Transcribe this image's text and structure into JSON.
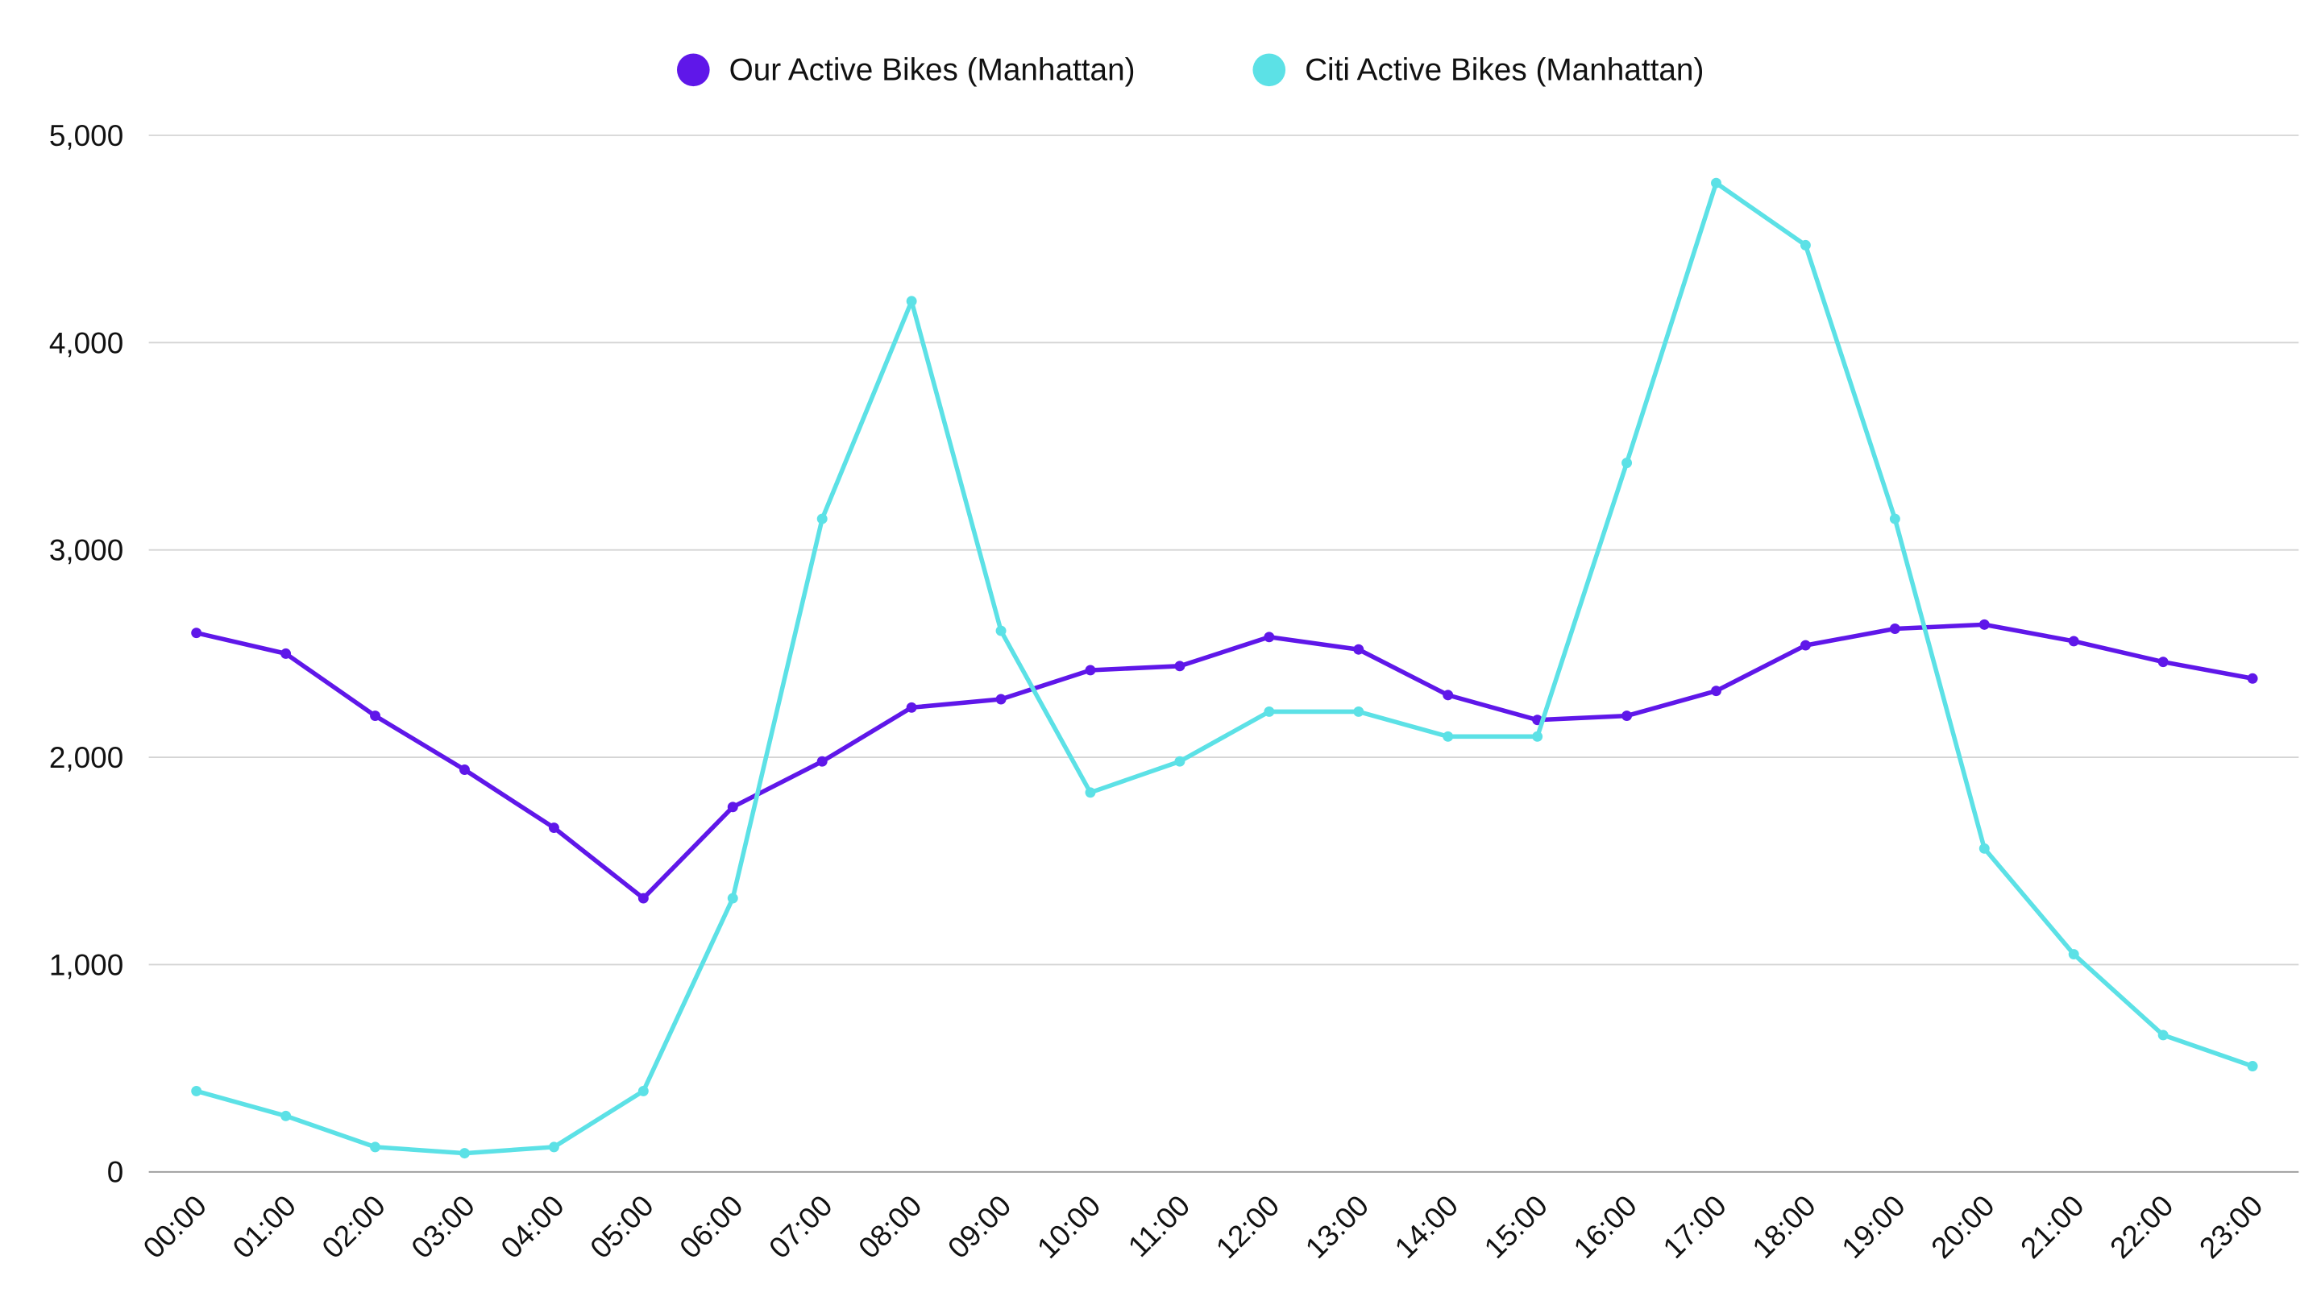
{
  "chart_data": {
    "type": "line",
    "title": "",
    "xlabel": "",
    "ylabel": "",
    "ylim": [
      0,
      5000
    ],
    "yticks": [
      "0",
      "1,000",
      "2,000",
      "3,000",
      "4,000",
      "5,000"
    ],
    "ytick_values": [
      0,
      1000,
      2000,
      3000,
      4000,
      5000
    ],
    "grid": true,
    "legend_position": "top-center",
    "categories": [
      "00:00",
      "01:00",
      "02:00",
      "03:00",
      "04:00",
      "05:00",
      "06:00",
      "07:00",
      "08:00",
      "09:00",
      "10:00",
      "11:00",
      "12:00",
      "13:00",
      "14:00",
      "15:00",
      "16:00",
      "17:00",
      "18:00",
      "19:00",
      "20:00",
      "21:00",
      "22:00",
      "23:00"
    ],
    "series": [
      {
        "name": "Our Active Bikes (Manhattan)",
        "color": "#5f17e9",
        "values": [
          2600,
          2500,
          2200,
          1940,
          1660,
          1320,
          1760,
          1980,
          2240,
          2280,
          2420,
          2440,
          2580,
          2520,
          2300,
          2180,
          2200,
          2320,
          2540,
          2620,
          2640,
          2560,
          2460,
          2380
        ]
      },
      {
        "name": "Citi Active Bikes (Manhattan)",
        "color": "#5ce1e6",
        "values": [
          390,
          270,
          120,
          90,
          120,
          390,
          1320,
          3150,
          4200,
          2610,
          1830,
          1980,
          2220,
          2220,
          2100,
          2100,
          3420,
          4770,
          4470,
          3150,
          1560,
          1050,
          660,
          510
        ]
      }
    ]
  }
}
